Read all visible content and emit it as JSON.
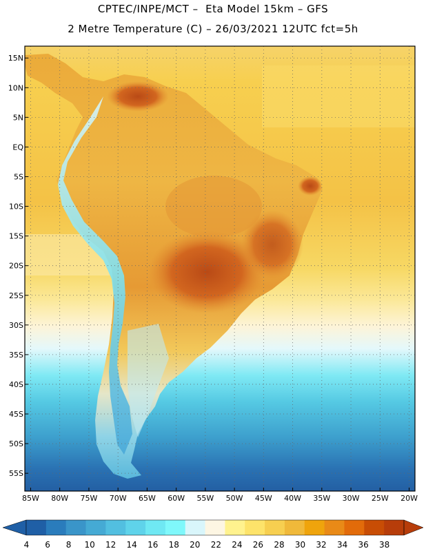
{
  "title": {
    "line1": "CPTEC/INPE/MCT –  Eta Model 15km – GFS",
    "line2": "2 Metre Temperature (C) – 26/03/2021 12UTC fct=5h"
  },
  "map": {
    "lon_range": [
      -86,
      -19
    ],
    "lat_range": [
      -58,
      17
    ],
    "lat_ticks": [
      {
        "lat": 15,
        "label": "15N"
      },
      {
        "lat": 10,
        "label": "10N"
      },
      {
        "lat": 5,
        "label": "5N"
      },
      {
        "lat": 0,
        "label": "EQ"
      },
      {
        "lat": -5,
        "label": "5S"
      },
      {
        "lat": -10,
        "label": "10S"
      },
      {
        "lat": -15,
        "label": "15S"
      },
      {
        "lat": -20,
        "label": "20S"
      },
      {
        "lat": -25,
        "label": "25S"
      },
      {
        "lat": -30,
        "label": "30S"
      },
      {
        "lat": -35,
        "label": "35S"
      },
      {
        "lat": -40,
        "label": "40S"
      },
      {
        "lat": -45,
        "label": "45S"
      },
      {
        "lat": -50,
        "label": "50S"
      },
      {
        "lat": -55,
        "label": "55S"
      }
    ],
    "lon_ticks": [
      {
        "lon": -85,
        "label": "85W"
      },
      {
        "lon": -80,
        "label": "80W"
      },
      {
        "lon": -75,
        "label": "75W"
      },
      {
        "lon": -70,
        "label": "70W"
      },
      {
        "lon": -65,
        "label": "65W"
      },
      {
        "lon": -60,
        "label": "60W"
      },
      {
        "lon": -55,
        "label": "55W"
      },
      {
        "lon": -50,
        "label": "50W"
      },
      {
        "lon": -45,
        "label": "45W"
      },
      {
        "lon": -40,
        "label": "40W"
      },
      {
        "lon": -35,
        "label": "35W"
      },
      {
        "lon": -30,
        "label": "30W"
      },
      {
        "lon": -25,
        "label": "25W"
      },
      {
        "lon": -20,
        "label": "20W"
      }
    ]
  },
  "colorbar": {
    "labels": [
      "4",
      "6",
      "8",
      "10",
      "12",
      "14",
      "16",
      "18",
      "20",
      "22",
      "24",
      "26",
      "28",
      "30",
      "32",
      "34",
      "36",
      "38"
    ],
    "colors": [
      "#1f5fa6",
      "#2a7cbc",
      "#3a95c9",
      "#45aad4",
      "#52bfe0",
      "#5fd3ea",
      "#6fe8f3",
      "#7ff8fb",
      "#d9f6fb",
      "#fdf6e3",
      "#fff28e",
      "#fde36a",
      "#f7cf50",
      "#f0b93a",
      "#efa40c",
      "#e98a17",
      "#e26b0a",
      "#c84d05",
      "#b73d0a"
    ]
  },
  "colors": {
    "ocean_north": "#f5c24a",
    "ocean_mid": "#fbe79a",
    "ocean_south_cold": "#3aa8d4",
    "land_hot": "#e0892a",
    "land_very_hot": "#c8561a",
    "andes_cold": "#7ee0ef"
  }
}
